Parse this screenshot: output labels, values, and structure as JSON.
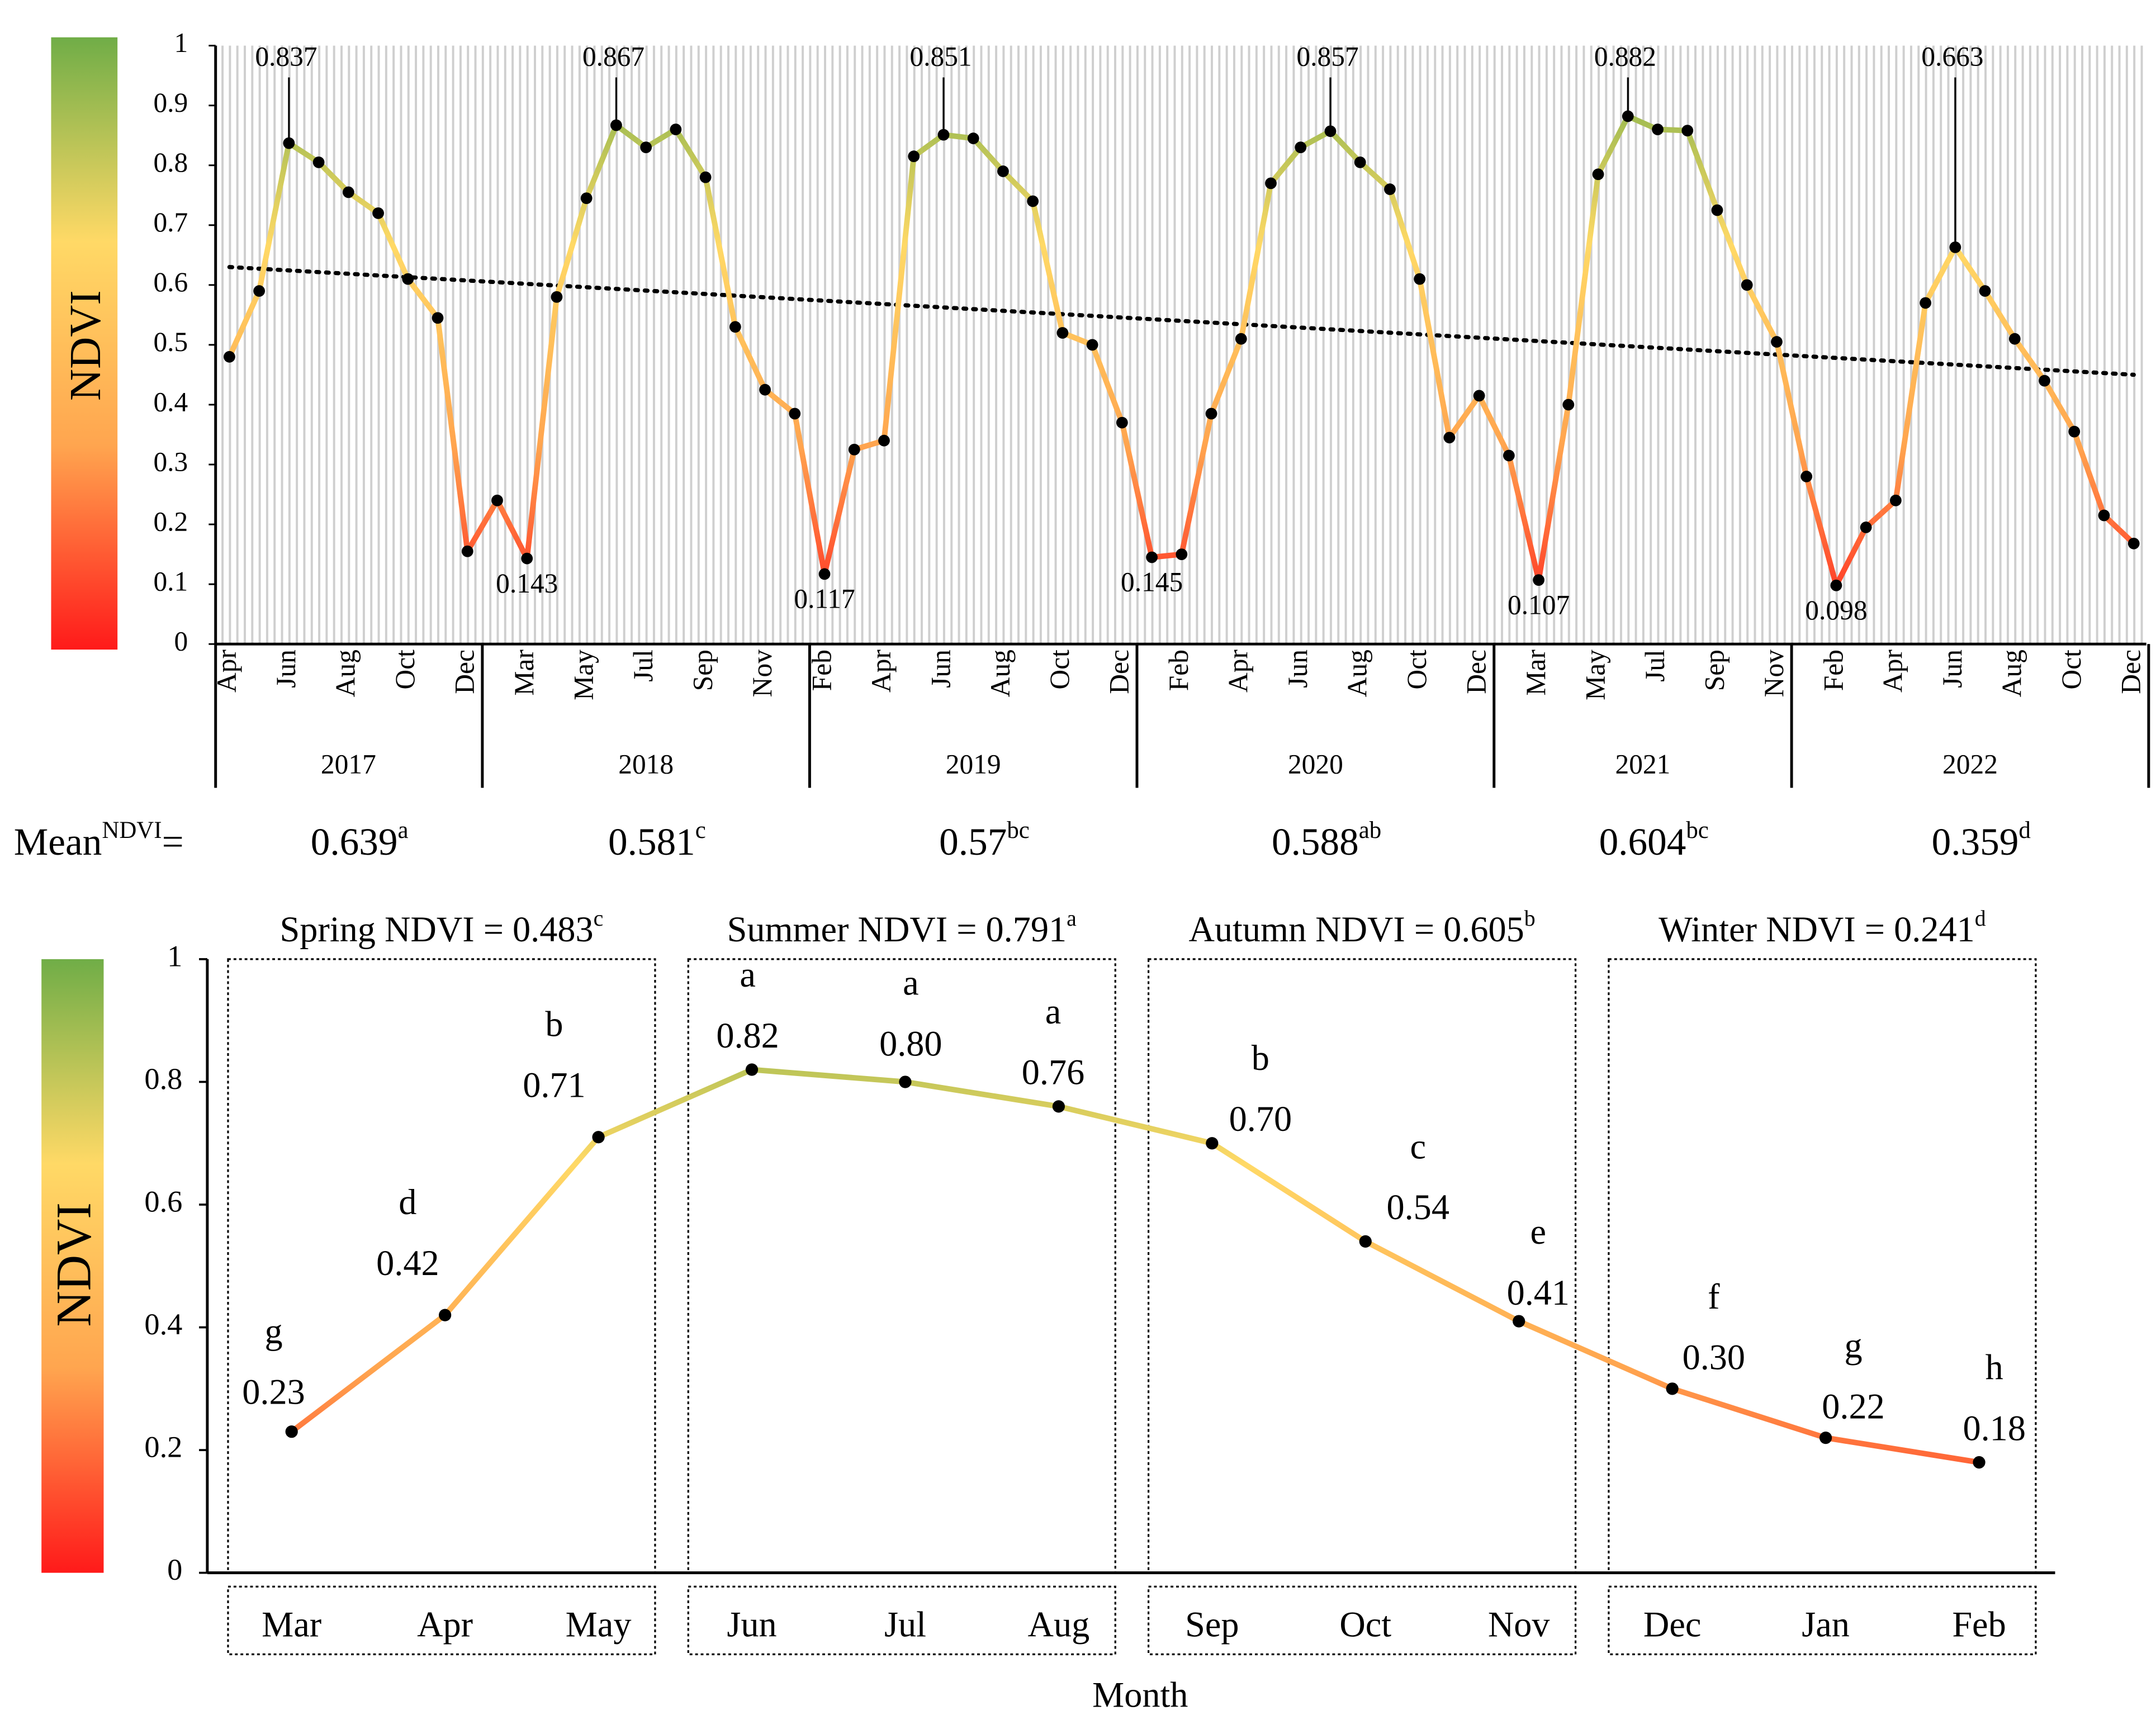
{
  "chart_data": [
    {
      "type": "line",
      "y_label": "NDVI",
      "ylim": [
        0,
        1
      ],
      "yticks": [
        0,
        0.1,
        0.2,
        0.3,
        0.4,
        0.5,
        0.6,
        0.7,
        0.8,
        0.9,
        1
      ],
      "colormap": [
        "#ff1a1a",
        "#ffa54f",
        "#ffd966",
        "#70ad47"
      ],
      "groups": [
        {
          "label": "2017",
          "categories": [
            "Apr",
            null,
            "Jun",
            null,
            "Aug",
            null,
            "Oct",
            null,
            "Dec"
          ],
          "mean": 0.639,
          "mean_letter": "a"
        },
        {
          "label": "2018",
          "categories": [
            null,
            "Mar",
            null,
            "May",
            null,
            "Jul",
            null,
            "Sep",
            null,
            "Nov",
            null
          ],
          "mean": 0.581,
          "mean_letter": "c"
        },
        {
          "label": "2019",
          "categories": [
            "Feb",
            null,
            "Apr",
            null,
            "Jun",
            null,
            "Aug",
            null,
            "Oct",
            null,
            "Dec"
          ],
          "mean": 0.57,
          "mean_letter": "bc"
        },
        {
          "label": "2020",
          "categories": [
            null,
            "Feb",
            null,
            "Apr",
            null,
            "Jun",
            null,
            "Aug",
            null,
            "Oct",
            null,
            "Dec"
          ],
          "mean": 0.588,
          "mean_letter": "ab"
        },
        {
          "label": "2021",
          "categories": [
            null,
            "Mar",
            null,
            "May",
            null,
            "Jul",
            null,
            "Sep",
            null,
            "Nov"
          ],
          "mean": 0.604,
          "mean_letter": "bc"
        },
        {
          "label": "2022",
          "categories": [
            null,
            "Feb",
            null,
            "Apr",
            null,
            "Jun",
            null,
            "Aug",
            null,
            "Oct",
            null,
            "Dec"
          ],
          "mean": 0.359,
          "mean_letter": "d"
        }
      ],
      "mean_label": {
        "text": "Mean",
        "sup": "NDVI",
        "suffix": "="
      },
      "series": [
        {
          "values": [
            0.48,
            0.59,
            0.837,
            0.805,
            0.755,
            0.72,
            0.61,
            0.545,
            0.155,
            0.24,
            0.143,
            0.58,
            0.745,
            0.867,
            0.83,
            0.86,
            0.78,
            0.53,
            0.425,
            0.385,
            0.117,
            0.325,
            0.34,
            0.815,
            0.851,
            0.845,
            0.79,
            0.74,
            0.52,
            0.5,
            0.37,
            0.145,
            0.15,
            0.385,
            0.51,
            0.77,
            0.83,
            0.857,
            0.805,
            0.76,
            0.61,
            0.345,
            0.415,
            0.315,
            0.107,
            0.4,
            0.785,
            0.882,
            0.86,
            0.858,
            0.725,
            0.6,
            0.505,
            0.28,
            0.098,
            0.195,
            0.24,
            0.57,
            0.663,
            0.59,
            0.51,
            0.44,
            0.355,
            0.215,
            0.168
          ],
          "value_labels": [
            null,
            null,
            "0.837",
            null,
            null,
            null,
            null,
            null,
            null,
            null,
            "0.143",
            null,
            null,
            "0.867",
            null,
            null,
            null,
            null,
            null,
            null,
            "0.117",
            null,
            null,
            null,
            "0.851",
            null,
            null,
            null,
            null,
            null,
            null,
            "0.145",
            null,
            null,
            null,
            null,
            null,
            "0.857",
            null,
            null,
            null,
            null,
            null,
            null,
            "0.107",
            null,
            null,
            "0.882",
            null,
            null,
            null,
            null,
            null,
            null,
            "0.098",
            null,
            null,
            null,
            "0.663",
            null,
            null,
            null,
            null,
            null,
            null
          ]
        }
      ],
      "trend": {
        "values": [
          0.63,
          0.45
        ],
        "style": "dotted"
      }
    },
    {
      "type": "line",
      "y_label": "NDVI",
      "x_label": "Month",
      "ylim": [
        0,
        1
      ],
      "yticks": [
        0,
        0.2,
        0.4,
        0.6,
        0.8,
        1
      ],
      "colormap": [
        "#ff1a1a",
        "#ffa54f",
        "#ffd966",
        "#70ad47"
      ],
      "categories": [
        "Mar",
        "Apr",
        "May",
        "Jun",
        "Jul",
        "Aug",
        "Sep",
        "Oct",
        "Nov",
        "Dec",
        "Jan",
        "Feb"
      ],
      "series": [
        {
          "values": [
            0.23,
            0.42,
            0.71,
            0.82,
            0.8,
            0.76,
            0.7,
            0.54,
            0.41,
            0.3,
            0.22,
            0.18
          ],
          "value_labels": [
            "0.23",
            "0.42",
            "0.71",
            "0.82",
            "0.80",
            "0.76",
            "0.70",
            "0.54",
            "0.41",
            "0.30",
            "0.22",
            "0.18"
          ],
          "letters": [
            "g",
            "d",
            "b",
            "a",
            "a",
            "a",
            "b",
            "c",
            "e",
            "f",
            "g",
            "h"
          ]
        }
      ],
      "seasons": [
        {
          "label": "Spring NDVI = ",
          "value": 0.483,
          "letter": "c"
        },
        {
          "label": "Summer NDVI = ",
          "value": 0.791,
          "letter": "a"
        },
        {
          "label": "Autumn NDVI = ",
          "value": 0.605,
          "letter": "b"
        },
        {
          "label": "Winter NDVI = ",
          "value": 0.241,
          "letter": "d"
        }
      ]
    }
  ]
}
